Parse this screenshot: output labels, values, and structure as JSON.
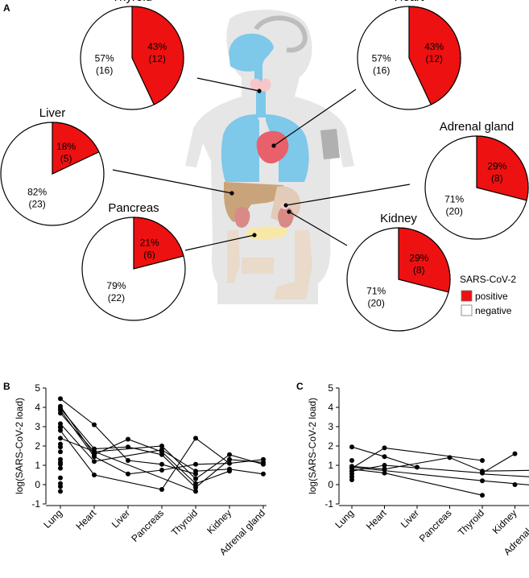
{
  "panels": {
    "a": "A",
    "b": "B",
    "c": "C"
  },
  "colors": {
    "positive": "#ee1111",
    "negative": "#ffffff",
    "lung": "#7ec8ea",
    "heart": "#e8606a",
    "liver": "#c9a47a",
    "body": "#e6e6e6"
  },
  "legend": {
    "title": "SARS-CoV-2",
    "items": [
      "positive",
      "negative"
    ]
  },
  "chart_data": [
    {
      "type": "pie",
      "panel": "A",
      "pies": [
        {
          "organ": "Thyroid",
          "positive_pct": "43%",
          "positive_n": "(12)",
          "negative_pct": "57%",
          "negative_n": "(16)",
          "positive_fraction": 0.43
        },
        {
          "organ": "Heart",
          "positive_pct": "43%",
          "positive_n": "(12)",
          "negative_pct": "57%",
          "negative_n": "(16)",
          "positive_fraction": 0.43
        },
        {
          "organ": "Liver",
          "positive_pct": "18%",
          "positive_n": "(5)",
          "negative_pct": "82%",
          "negative_n": "(23)",
          "positive_fraction": 0.18
        },
        {
          "organ": "Adrenal gland",
          "positive_pct": "29%",
          "positive_n": "(8)",
          "negative_pct": "71%",
          "negative_n": "(20)",
          "positive_fraction": 0.29
        },
        {
          "organ": "Pancreas",
          "positive_pct": "21%",
          "positive_n": "(6)",
          "negative_pct": "79%",
          "negative_n": "(22)",
          "positive_fraction": 0.21
        },
        {
          "organ": "Kidney",
          "positive_pct": "29%",
          "positive_n": "(8)",
          "negative_pct": "71%",
          "negative_n": "(20)",
          "positive_fraction": 0.29
        }
      ]
    },
    {
      "type": "scatter",
      "panel": "B",
      "categories": [
        "Lung",
        "Heart",
        "Liver",
        "Pancreas",
        "Thyroid",
        "Kidney",
        "Adrenal gland"
      ],
      "ylabel": "log(SARS-CoV-2 load)",
      "ylim": [
        -1,
        5
      ],
      "yticks": [
        "-1",
        "0",
        "1",
        "2",
        "3",
        "4",
        "5"
      ],
      "grid": false,
      "points": [
        [
          0,
          4.45
        ],
        [
          0,
          4.05
        ],
        [
          0,
          3.95
        ],
        [
          0,
          3.85
        ],
        [
          0,
          3.7
        ],
        [
          0,
          3.15
        ],
        [
          0,
          3.0
        ],
        [
          0,
          2.95
        ],
        [
          0,
          2.8
        ],
        [
          0,
          2.4
        ],
        [
          0,
          2.1
        ],
        [
          0,
          1.95
        ],
        [
          0,
          1.7
        ],
        [
          0,
          1.3
        ],
        [
          0,
          1.15
        ],
        [
          0,
          1.05
        ],
        [
          0,
          0.85
        ],
        [
          0,
          0.35
        ],
        [
          0,
          0.05
        ],
        [
          0,
          -0.1
        ],
        [
          0,
          -0.35
        ],
        [
          1,
          3.1
        ],
        [
          1,
          1.85
        ],
        [
          1,
          1.7
        ],
        [
          1,
          1.55
        ],
        [
          1,
          1.45
        ],
        [
          1,
          1.2
        ],
        [
          1,
          0.5
        ],
        [
          2,
          2.35
        ],
        [
          2,
          1.95
        ],
        [
          2,
          1.25
        ],
        [
          2,
          0.55
        ],
        [
          3,
          2.0
        ],
        [
          3,
          1.8
        ],
        [
          3,
          1.7
        ],
        [
          3,
          1.55
        ],
        [
          3,
          1.05
        ],
        [
          3,
          0.75
        ],
        [
          3,
          -0.25
        ],
        [
          4,
          2.4
        ],
        [
          4,
          1.05
        ],
        [
          4,
          0.7
        ],
        [
          4,
          0.55
        ],
        [
          4,
          0.3
        ],
        [
          4,
          0.05
        ],
        [
          4,
          -0.15
        ],
        [
          4,
          -0.35
        ],
        [
          5,
          1.55
        ],
        [
          5,
          1.3
        ],
        [
          5,
          1.1
        ],
        [
          5,
          0.8
        ],
        [
          5,
          0.7
        ],
        [
          6,
          1.3
        ],
        [
          6,
          1.15
        ],
        [
          6,
          1.05
        ],
        [
          6,
          0.55
        ]
      ],
      "lines": [
        [
          [
            0,
            4.45
          ],
          [
            1,
            3.1
          ],
          [
            2,
            1.25
          ],
          [
            3,
            1.05
          ],
          [
            4,
            0.55
          ]
        ],
        [
          [
            0,
            4.05
          ],
          [
            1,
            1.55
          ],
          [
            2,
            2.35
          ],
          [
            3,
            1.7
          ],
          [
            4,
            0.05
          ],
          [
            5,
            0.7
          ]
        ],
        [
          [
            0,
            3.95
          ],
          [
            1,
            1.85
          ],
          [
            2,
            1.95
          ],
          [
            3,
            1.55
          ],
          [
            4,
            -0.15
          ],
          [
            5,
            1.3
          ],
          [
            6,
            1.15
          ]
        ],
        [
          [
            0,
            3.85
          ],
          [
            1,
            1.45
          ],
          [
            2,
            0.55
          ],
          [
            3,
            0.75
          ],
          [
            4,
            1.05
          ],
          [
            5,
            1.1
          ],
          [
            6,
            1.3
          ]
        ],
        [
          [
            0,
            3.7
          ],
          [
            1,
            1.7
          ],
          [
            3,
            2.0
          ],
          [
            4,
            0.3
          ],
          [
            5,
            1.55
          ],
          [
            6,
            1.05
          ]
        ],
        [
          [
            0,
            3.15
          ],
          [
            1,
            1.2
          ],
          [
            3,
            1.8
          ],
          [
            4,
            0.7
          ],
          [
            5,
            0.8
          ],
          [
            6,
            0.55
          ]
        ],
        [
          [
            0,
            2.8
          ],
          [
            1,
            0.5
          ],
          [
            3,
            -0.25
          ],
          [
            4,
            2.4
          ],
          [
            5,
            1.1
          ]
        ],
        [
          [
            0,
            2.4
          ],
          [
            4,
            -0.35
          ]
        ]
      ]
    },
    {
      "type": "scatter",
      "panel": "C",
      "categories": [
        "Lung",
        "Heart",
        "Liver",
        "Pancreas",
        "Thyroid",
        "Kidney",
        "Adrenal gland"
      ],
      "ylabel": "log(SARS-CoV-2 load)",
      "ylim": [
        -1,
        5
      ],
      "yticks": [
        "-1",
        "0",
        "1",
        "2",
        "3",
        "4",
        "5"
      ],
      "grid": false,
      "points": [
        [
          0,
          1.95
        ],
        [
          0,
          1.25
        ],
        [
          0,
          0.95
        ],
        [
          0,
          0.85
        ],
        [
          0,
          0.7
        ],
        [
          0,
          0.55
        ],
        [
          0,
          0.4
        ],
        [
          0,
          0.25
        ],
        [
          1,
          1.9
        ],
        [
          1,
          1.45
        ],
        [
          1,
          1.0
        ],
        [
          1,
          0.8
        ],
        [
          1,
          0.6
        ],
        [
          2,
          0.9
        ],
        [
          3,
          1.4
        ],
        [
          4,
          1.25
        ],
        [
          4,
          0.7
        ],
        [
          4,
          0.6
        ],
        [
          4,
          0.2
        ],
        [
          4,
          -0.55
        ],
        [
          5,
          1.6
        ],
        [
          5,
          0.0
        ],
        [
          6,
          0.75
        ],
        [
          6,
          0.35
        ],
        [
          6,
          -0.1
        ]
      ],
      "lines": [
        [
          [
            0,
            1.95
          ],
          [
            1,
            1.45
          ],
          [
            2,
            0.9
          ]
        ],
        [
          [
            0,
            0.85
          ],
          [
            1,
            1.9
          ],
          [
            4,
            1.25
          ]
        ],
        [
          [
            0,
            0.7
          ],
          [
            1,
            1.0
          ],
          [
            4,
            0.6
          ],
          [
            5,
            1.6
          ]
        ],
        [
          [
            0,
            0.95
          ],
          [
            1,
            0.8
          ],
          [
            3,
            1.4
          ],
          [
            4,
            0.7
          ],
          [
            6,
            0.75
          ]
        ],
        [
          [
            0,
            0.9
          ],
          [
            4,
            0.2
          ],
          [
            6,
            -0.1
          ]
        ],
        [
          [
            0,
            0.8
          ],
          [
            1,
            0.6
          ],
          [
            4,
            -0.55
          ]
        ],
        [
          [
            4,
            0.55
          ],
          [
            6,
            0.35
          ]
        ]
      ]
    }
  ]
}
